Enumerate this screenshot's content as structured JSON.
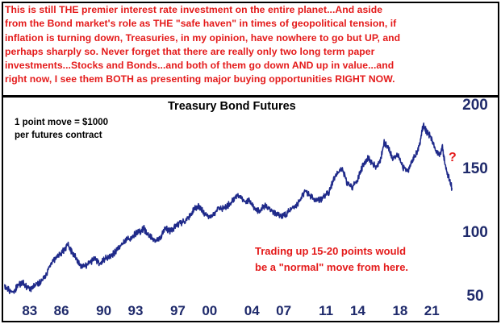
{
  "commentary": {
    "lines": [
      "This is still THE premier interest rate investment on the entire planet...And aside",
      "from the Bond market's role as THE \"safe haven\" in times of geopolitical tension, if",
      "inflation is turning down, Treasuries, in my opinion, have nowhere to go but UP, and",
      "perhaps sharply so. Never forget that there are really only two long term paper",
      "investments...Stocks and Bonds...and both of them go down AND up in value...and",
      "right now, I see them BOTH as presenting major buying opportunities RIGHT NOW."
    ]
  },
  "note": {
    "line1": "1 point move = $1000",
    "line2": "per futures contract"
  },
  "annotation": {
    "line1": "Trading up 15-20 points would",
    "line2": "be a \"normal\" move from here.",
    "question_mark": "?"
  },
  "colors": {
    "text_accent": "#e41a1a",
    "series": "#1f2a8a",
    "axis_labels": "#1f2a6b"
  },
  "chart_data": {
    "type": "line",
    "title": "Treasury Bond Futures",
    "xlabel": "",
    "ylabel": "",
    "x_tick_labels": [
      "83",
      "86",
      "90",
      "93",
      "97",
      "00",
      "04",
      "07",
      "11",
      "14",
      "18",
      "21"
    ],
    "x_ticks_year": [
      1983,
      1986,
      1990,
      1993,
      1997,
      2000,
      2004,
      2007,
      2011,
      2014,
      2018,
      2021
    ],
    "y_tick_labels": [
      "200",
      "150",
      "100",
      "50"
    ],
    "y_ticks": [
      200,
      150,
      100,
      50
    ],
    "xlim": [
      1980.5,
      2023.8
    ],
    "ylim": [
      45,
      205
    ],
    "grid": false,
    "legend": "none",
    "series": [
      {
        "x": [
          1980.6,
          1981.0,
          1981.5,
          1981.8,
          1982.3,
          1982.8,
          1983.2,
          1983.7,
          1984.0,
          1984.5,
          1985.0,
          1985.5,
          1986.0,
          1986.3,
          1986.6,
          1987.0,
          1987.3,
          1987.8,
          1988.2,
          1988.7,
          1989.2,
          1989.7,
          1990.0,
          1990.5,
          1991.0,
          1991.5,
          1992.0,
          1992.5,
          1993.0,
          1993.5,
          1993.8,
          1994.2,
          1994.8,
          1995.3,
          1995.8,
          1996.2,
          1996.7,
          1997.2,
          1997.7,
          1998.2,
          1998.6,
          1998.9,
          1999.4,
          1999.9,
          2000.3,
          2000.8,
          2001.3,
          2001.7,
          2002.2,
          2002.6,
          2003.0,
          2003.4,
          2003.8,
          2004.2,
          2004.7,
          2005.2,
          2005.8,
          2006.3,
          2006.8,
          2007.3,
          2007.8,
          2008.3,
          2008.8,
          2009.0,
          2009.5,
          2010.0,
          2010.5,
          2010.9,
          2011.3,
          2011.6,
          2012.0,
          2012.5,
          2013.0,
          2013.5,
          2014.0,
          2014.5,
          2015.0,
          2015.3,
          2015.8,
          2016.2,
          2016.5,
          2016.9,
          2017.3,
          2017.8,
          2018.3,
          2018.8,
          2019.2,
          2019.6,
          2019.9,
          2020.2,
          2020.5,
          2020.9,
          2021.3,
          2021.7,
          2022.0,
          2022.3,
          2022.6,
          2022.9
        ],
        "y": [
          58,
          54,
          52,
          57,
          60,
          56,
          55,
          59,
          60,
          65,
          75,
          79,
          83,
          86,
          90,
          83,
          80,
          73,
          72,
          76,
          78,
          74,
          78,
          80,
          83,
          88,
          92,
          95,
          98,
          100,
          102,
          97,
          93,
          94,
          103,
          100,
          103,
          106,
          108,
          113,
          118,
          120,
          115,
          112,
          113,
          117,
          118,
          120,
          124,
          128,
          126,
          123,
          124,
          118,
          116,
          120,
          117,
          114,
          112,
          114,
          118,
          121,
          128,
          132,
          128,
          124,
          125,
          128,
          131,
          138,
          145,
          150,
          138,
          135,
          141,
          152,
          158,
          154,
          150,
          158,
          170,
          165,
          158,
          160,
          150,
          148,
          156,
          162,
          170,
          184,
          178,
          174,
          164,
          159,
          166,
          150,
          142,
          134
        ]
      }
    ]
  }
}
